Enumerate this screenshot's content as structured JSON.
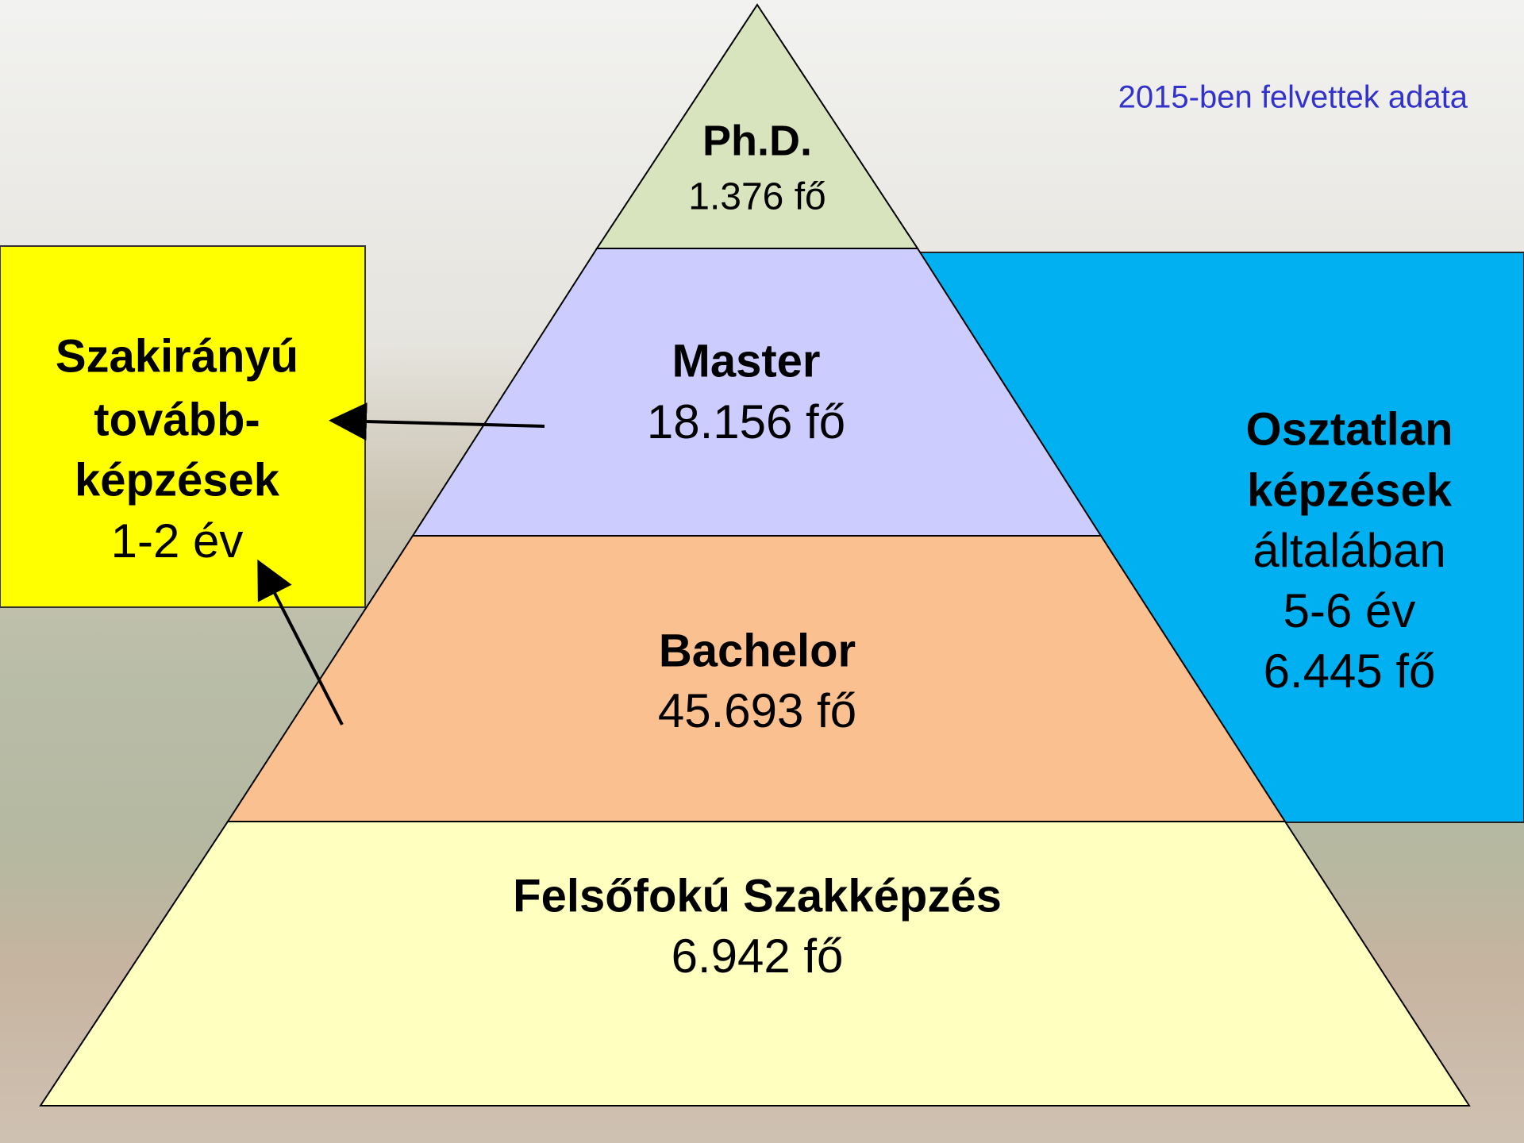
{
  "note": "2015-ben felvettek adata",
  "levels": [
    {
      "name": "Ph.D.",
      "count": "1.376 fő"
    },
    {
      "name": "Master",
      "count": "18.156 fő"
    },
    {
      "name": "Bachelor",
      "count": "45.693 fő"
    },
    {
      "name": "Felsőfokú Szakképzés",
      "count": "6.942 fő"
    }
  ],
  "left_box": {
    "lines": [
      "Szakirányú",
      "tovább-",
      "képzések",
      "1-2 év"
    ]
  },
  "right_box": {
    "lines": [
      "Osztatlan",
      "képzések",
      "általában",
      "5-6 év",
      "6.445 fő"
    ]
  }
}
